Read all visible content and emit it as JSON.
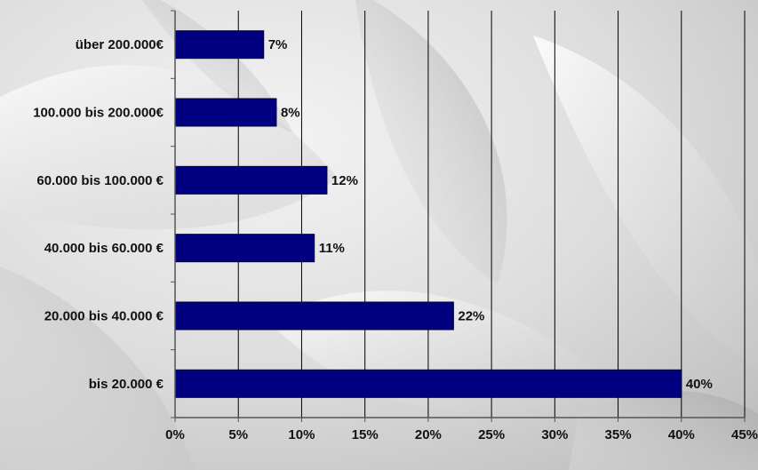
{
  "chart_data": {
    "type": "bar",
    "orientation": "horizontal",
    "categories": [
      "über 200.000€",
      "100.000 bis 200.000€",
      "60.000 bis 100.000 €",
      "40.000 bis 60.000 €",
      "20.000 bis 40.000 €",
      "bis 20.000 €"
    ],
    "values": [
      7,
      8,
      12,
      11,
      22,
      40
    ],
    "value_labels": [
      "7%",
      "8%",
      "12%",
      "11%",
      "22%",
      "40%"
    ],
    "xlim": [
      0,
      45
    ],
    "xticks": [
      0,
      5,
      10,
      15,
      20,
      25,
      30,
      35,
      40,
      45
    ],
    "xtick_labels": [
      "0%",
      "5%",
      "10%",
      "15%",
      "20%",
      "25%",
      "30%",
      "35%",
      "40%",
      "45%"
    ],
    "title": "",
    "xlabel": "",
    "ylabel": "",
    "grid": "vertical",
    "legend": "none",
    "bar_color": "#000080",
    "gridline_color": "#000000",
    "background": "grey abstract photo"
  }
}
